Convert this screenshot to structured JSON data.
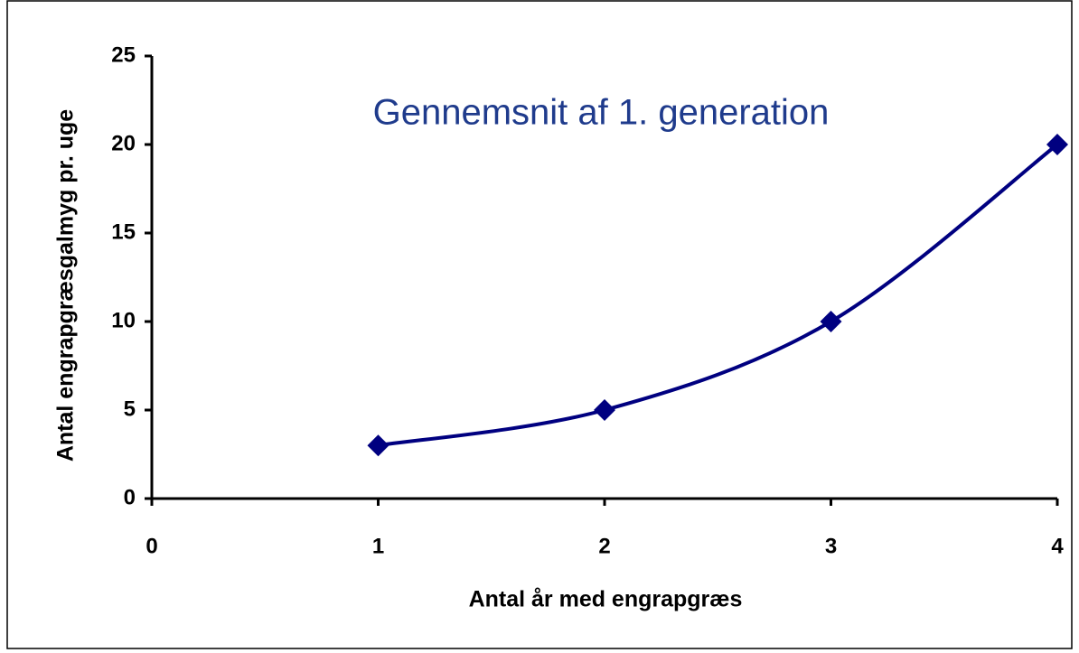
{
  "chart_data": {
    "type": "line",
    "title": "Gennemsnit af 1. generation",
    "x_label": "Antal år med engrapgræs",
    "y_label": "Antal engrapgræsgalmyg pr. uge",
    "x": [
      1,
      2,
      3,
      4
    ],
    "series": [
      {
        "name": "Gennemsnit af 1. generation",
        "color": "#000080",
        "values": [
          3,
          5,
          10,
          20
        ]
      }
    ],
    "xlim": [
      0,
      4
    ],
    "xticks": [
      0,
      1,
      2,
      3,
      4
    ],
    "ylim": [
      0,
      25
    ],
    "yticks": [
      0,
      5,
      10,
      15,
      20,
      25
    ],
    "smooth": true,
    "grid": false,
    "title_color": "#1f3b8c"
  }
}
